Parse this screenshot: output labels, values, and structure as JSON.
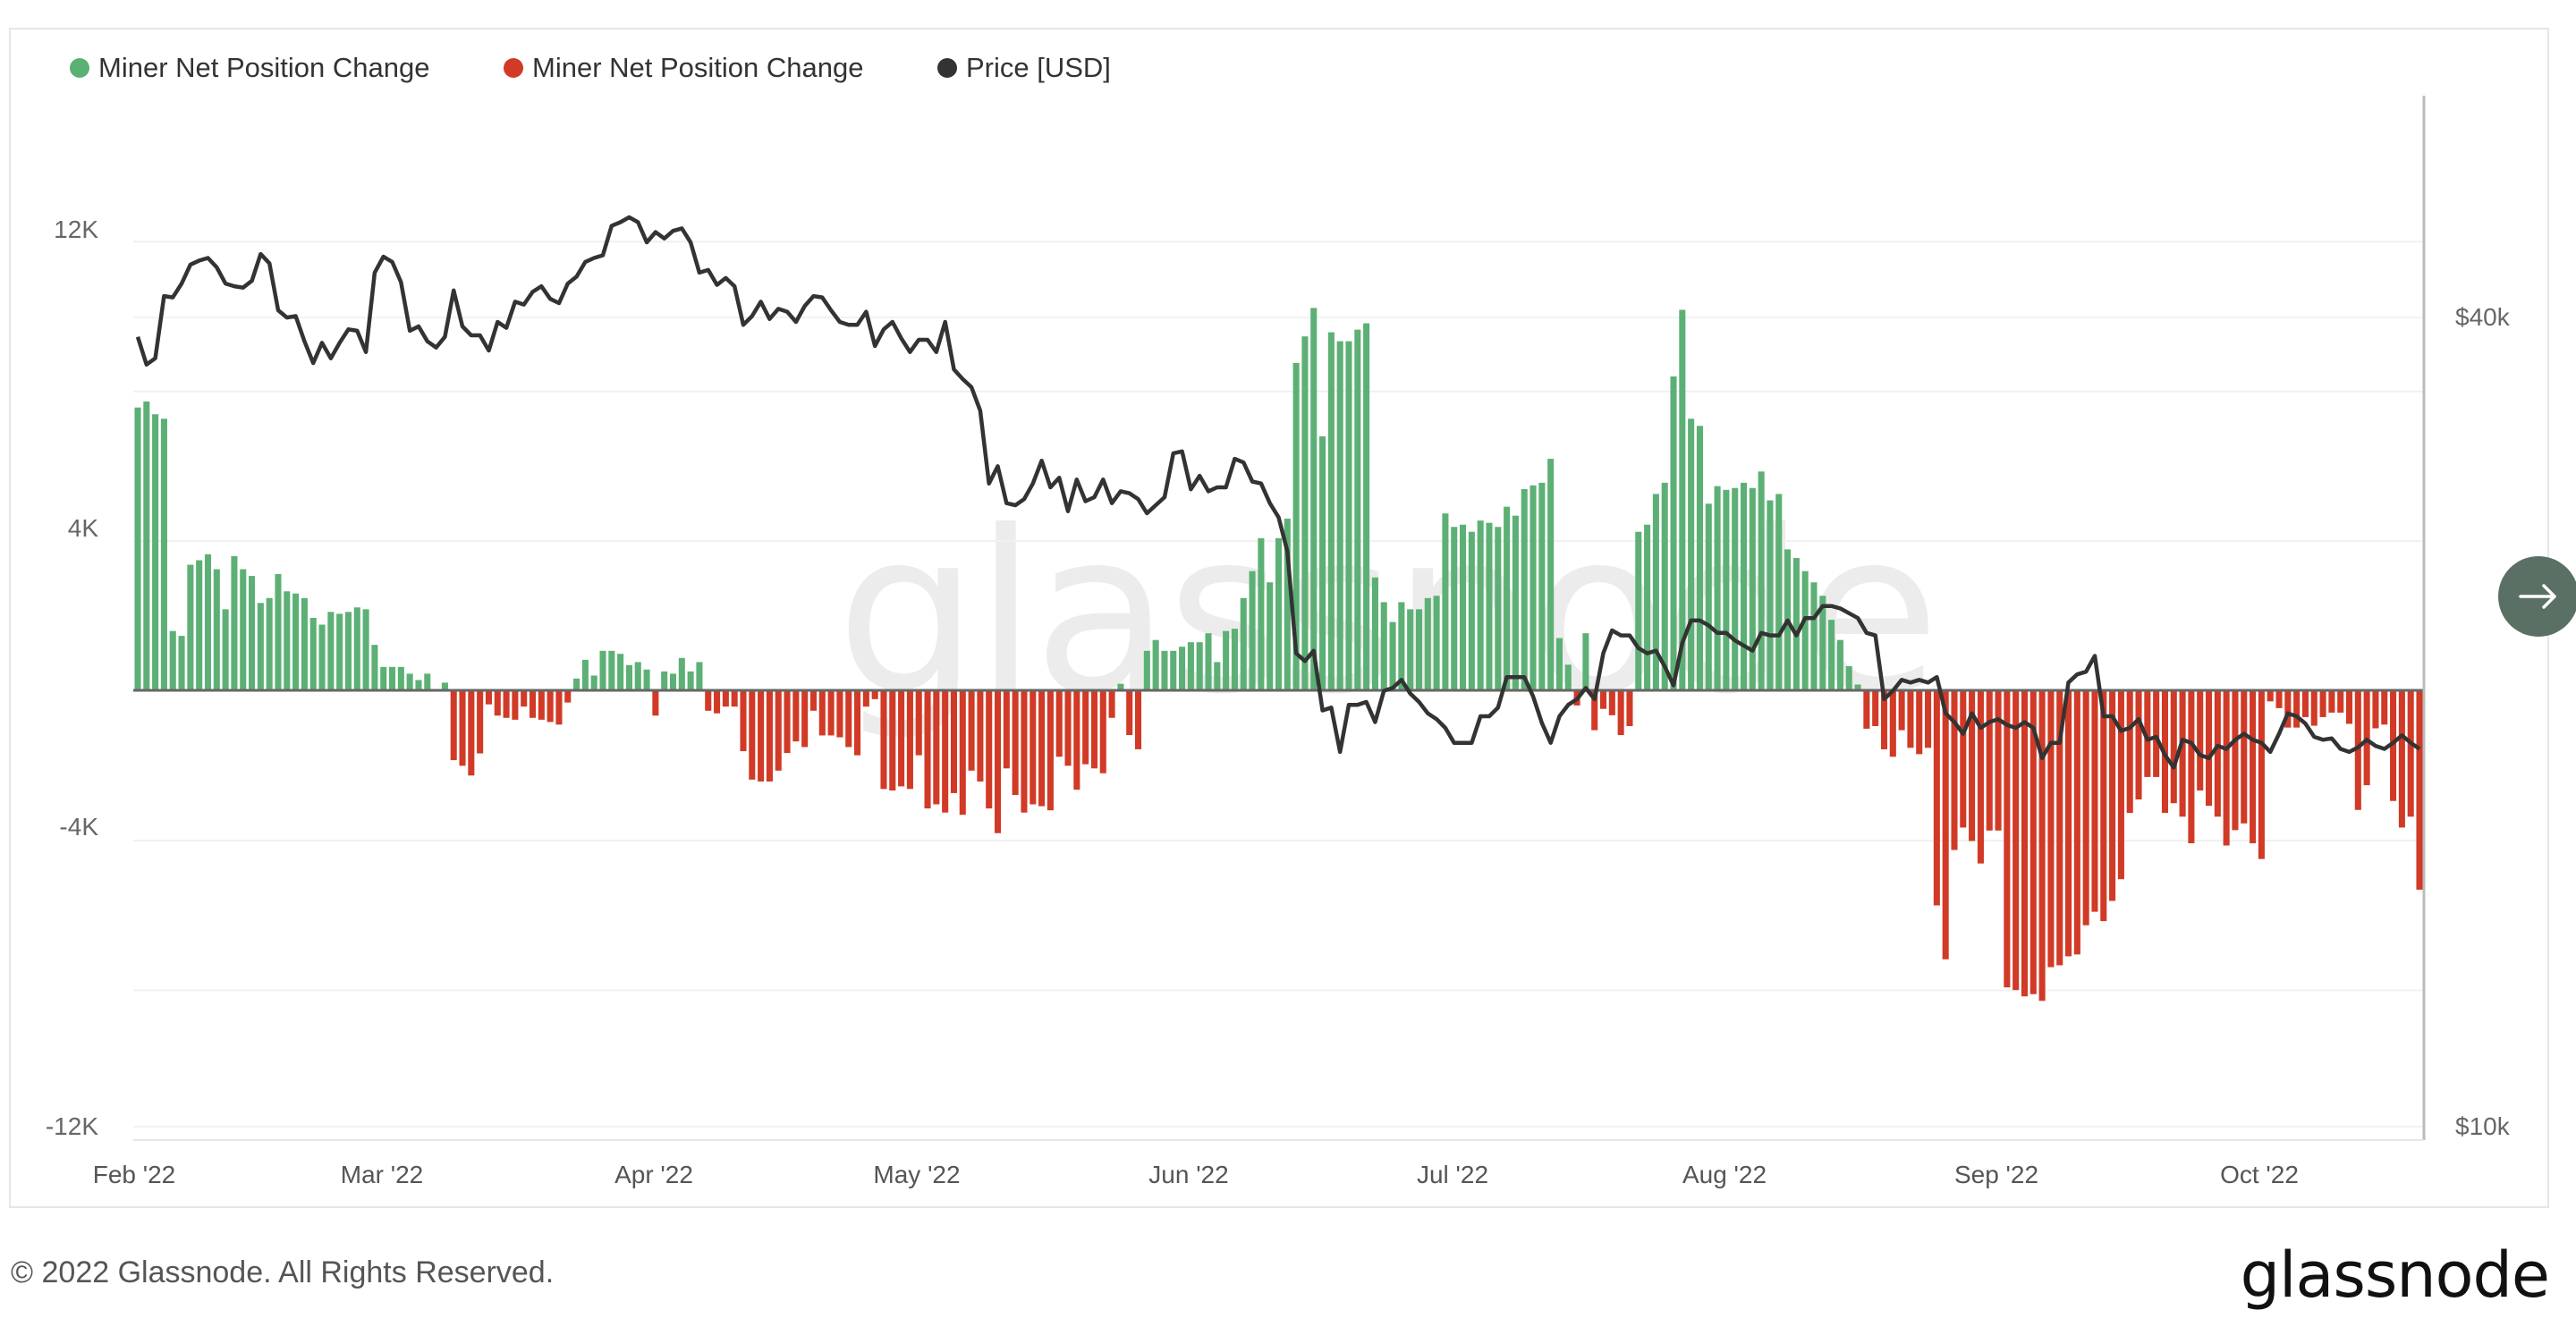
{
  "legend": [
    {
      "label": "Miner Net Position Change",
      "color": "#5db075"
    },
    {
      "label": "Miner Net Position Change",
      "color": "#d13a26"
    },
    {
      "label": "Price [USD]",
      "color": "#333333"
    }
  ],
  "watermark": "glassnode",
  "footer": {
    "copyright": "© 2022 Glassnode. All Rights Reserved.",
    "logo": "glassnode"
  },
  "next_button": {
    "icon": "arrow-right-icon",
    "color": "#5a7064"
  },
  "chart_data": {
    "type": "bar+line",
    "title": "",
    "x": {
      "start": "2022-02-01",
      "end": "2022-10-19",
      "interval": "daily"
    },
    "x_tick_labels": [
      "Feb '22",
      "Mar '22",
      "Apr '22",
      "May '22",
      "Jun '22",
      "Jul '22",
      "Aug '22",
      "Sep '22",
      "Oct '22"
    ],
    "x_tick_dates": [
      "2022-02-01",
      "2022-03-01",
      "2022-04-01",
      "2022-05-01",
      "2022-06-01",
      "2022-07-01",
      "2022-08-01",
      "2022-09-01",
      "2022-10-01"
    ],
    "y_left": {
      "ticks": [
        12000,
        4000,
        -4000,
        -12000
      ],
      "tick_labels": [
        "12K",
        "4K",
        "-4K",
        "-12K"
      ],
      "gridlines": [
        12000,
        8000,
        4000,
        0,
        -4000,
        -8000,
        -12000
      ],
      "ylim": [
        -12000,
        15900
      ]
    },
    "y_right": {
      "scale": "log",
      "ticks": [
        40000,
        10000
      ],
      "tick_labels": [
        "$40k",
        "$10k"
      ],
      "ylim": [
        9770,
        58500
      ]
    },
    "grid": true,
    "legend_position": "top-left",
    "colors": {
      "positive": "#5db075",
      "negative": "#d13a26",
      "price": "#333333"
    },
    "series": [
      {
        "name": "Miner Net Position Change",
        "type": "bar",
        "axis": "left",
        "values": [
          7570,
          7730,
          7390,
          7270,
          1600,
          1470,
          3370,
          3490,
          3650,
          3250,
          2180,
          3600,
          3250,
          3070,
          2350,
          2480,
          3120,
          2660,
          2600,
          2480,
          1950,
          1770,
          2110,
          2060,
          2110,
          2230,
          2180,
          1230,
          640,
          640,
          640,
          460,
          290,
          460,
          50,
          220,
          -1850,
          -2000,
          -2260,
          -1670,
          -360,
          -660,
          -720,
          -770,
          -420,
          -720,
          -770,
          -830,
          -900,
          -310,
          330,
          830,
          410,
          1070,
          1070,
          990,
          690,
          770,
          570,
          -660,
          520,
          460,
          880,
          520,
          770,
          -530,
          -600,
          -420,
          -420,
          -1610,
          -2370,
          -2420,
          -2420,
          -2130,
          -1660,
          -1350,
          -1500,
          -530,
          -1190,
          -1190,
          -1240,
          -1500,
          -1720,
          -420,
          -220,
          -2620,
          -2660,
          -2550,
          -2620,
          -1720,
          -3140,
          -3030,
          -3250,
          -2730,
          -3310,
          -2130,
          -2420,
          -3140,
          -3800,
          -2070,
          -2780,
          -3250,
          -3030,
          -3080,
          -3190,
          -1760,
          -2000,
          -2640,
          -1960,
          -2070,
          -2200,
          -720,
          190,
          -1180,
          -1560,
          1070,
          1360,
          1070,
          1070,
          1180,
          1300,
          1300,
          1540,
          770,
          1600,
          1660,
          2480,
          3200,
          4080,
          2900,
          4080,
          4600,
          8760,
          9470,
          10230,
          6800,
          9580,
          9340,
          9340,
          9650,
          9820,
          3030,
          2370,
          1840,
          2370,
          2180,
          2180,
          2480,
          2540,
          4740,
          4380,
          4440,
          4250,
          4550,
          4490,
          4380,
          4920,
          4680,
          5390,
          5490,
          5560,
          6200,
          1410,
          700,
          -390,
          1540,
          -1050,
          -480,
          -650,
          -1180,
          -940,
          4250,
          4440,
          5260,
          5560,
          8400,
          10180,
          7270,
          7080,
          5000,
          5470,
          5370,
          5420,
          5560,
          5420,
          5860,
          5090,
          5260,
          3780,
          3550,
          3200,
          2900,
          2540,
          1900,
          1360,
          660,
          170,
          -1010,
          -940,
          -1560,
          -1760,
          -1050,
          -1520,
          -1690,
          -1520,
          -5730,
          -7170,
          -4250,
          -3650,
          -4010,
          -4610,
          -3730,
          -3730,
          -7920,
          -7990,
          -8160,
          -8100,
          -8280,
          -7380,
          -7330,
          -7090,
          -7040,
          -6260,
          -5900,
          -6150,
          -5610,
          -5030,
          -3260,
          -2900,
          -2300,
          -2300,
          -3260,
          -3000,
          -3360,
          -4070,
          -2660,
          -3070,
          -3360,
          -4130,
          -3720,
          -3540,
          -4070,
          -4490,
          -280,
          -460,
          -980,
          -980,
          -700,
          -930,
          -700,
          -580,
          -580,
          -880,
          -3180,
          -2520,
          -1000,
          -900,
          -2940,
          -3650,
          -3360,
          -5310
        ]
      },
      {
        "name": "Price [USD]",
        "type": "line",
        "axis": "right",
        "values": [
          38700,
          36900,
          37300,
          41500,
          41400,
          42400,
          43800,
          44100,
          44300,
          43600,
          42400,
          42200,
          42100,
          42600,
          44600,
          43900,
          40500,
          40000,
          40100,
          38400,
          37000,
          38300,
          37300,
          38300,
          39200,
          39100,
          37700,
          43200,
          44400,
          44000,
          42500,
          39100,
          39400,
          38400,
          38000,
          38700,
          41900,
          39400,
          38800,
          38800,
          37800,
          39700,
          39300,
          41100,
          40900,
          41800,
          42200,
          41300,
          41000,
          42400,
          42900,
          44000,
          44300,
          44500,
          46800,
          47100,
          47500,
          47100,
          45500,
          46300,
          45800,
          46400,
          46600,
          45500,
          43200,
          43400,
          42300,
          42800,
          42200,
          39500,
          40100,
          41100,
          39900,
          40600,
          40400,
          39700,
          40800,
          41500,
          41400,
          40500,
          39700,
          39500,
          39500,
          40400,
          38100,
          39200,
          39700,
          38600,
          37700,
          38500,
          38500,
          37700,
          39700,
          36600,
          36000,
          35500,
          34100,
          30100,
          31000,
          29100,
          29000,
          29300,
          30100,
          31300,
          29900,
          30400,
          28700,
          30300,
          29200,
          29400,
          30300,
          29100,
          29700,
          29600,
          29300,
          28600,
          29000,
          29400,
          31700,
          31800,
          29800,
          30500,
          29700,
          29900,
          29900,
          31400,
          31200,
          30200,
          30100,
          29100,
          28400,
          26800,
          22500,
          22200,
          22600,
          20400,
          20500,
          19000,
          20600,
          20600,
          20700,
          20000,
          21100,
          21200,
          21500,
          21000,
          20700,
          20300,
          20100,
          19800,
          19300,
          19300,
          19300,
          20200,
          20200,
          20500,
          21600,
          21600,
          21600,
          20900,
          19970,
          19300,
          20200,
          20600,
          20800,
          21200,
          20800,
          22500,
          23400,
          23200,
          23200,
          22700,
          22500,
          22600,
          22000,
          21300,
          22900,
          23800,
          23800,
          23600,
          23300,
          23300,
          23000,
          22800,
          22600,
          23300,
          23200,
          23200,
          23800,
          23200,
          23900,
          23900,
          24400,
          24400,
          24300,
          24100,
          23900,
          23300,
          23200,
          20800,
          21100,
          21500,
          21400,
          21500,
          21400,
          21600,
          20300,
          20000,
          19600,
          20300,
          19800,
          20000,
          20100,
          19900,
          19800,
          20000,
          19800,
          18800,
          19300,
          19300,
          21400,
          21700,
          21800,
          22400,
          20200,
          20200,
          19700,
          19800,
          20100,
          19400,
          19500,
          18900,
          18500,
          19400,
          19300,
          18900,
          18800,
          19200,
          19100,
          19400,
          19600,
          19400,
          19300,
          19000,
          19600,
          20300,
          20200,
          19950,
          19500,
          19400,
          19450,
          19100,
          19000,
          19150,
          19400,
          19200,
          19100,
          19300,
          19550,
          19300,
          19100
        ]
      }
    ]
  }
}
